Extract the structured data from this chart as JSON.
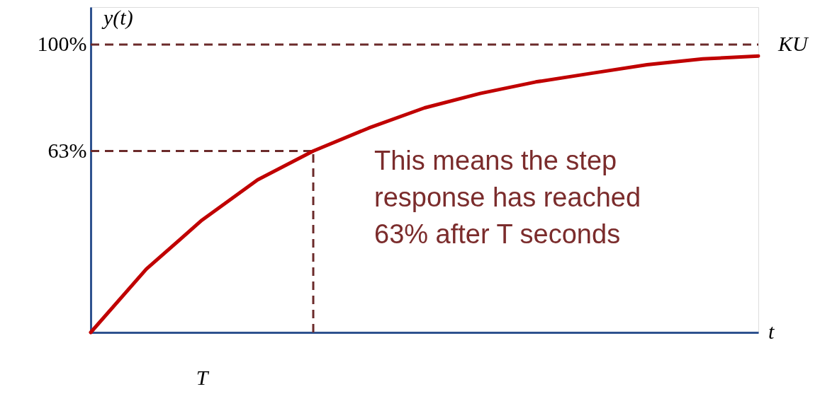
{
  "chart_data": {
    "type": "line",
    "xlabel": "t",
    "ylabel": "y(t)",
    "categories": [
      null,
      null,
      null,
      null,
      null,
      null,
      null,
      null,
      null,
      null,
      null,
      null,
      null
    ],
    "series": [
      {
        "color": "#c00000",
        "values": [
          0,
          22,
          39,
          53,
          63,
          71,
          78,
          83,
          87,
          90,
          93,
          95,
          96
        ]
      }
    ],
    "ylim": [
      0,
      113
    ],
    "yticks": [
      {
        "value": 100,
        "label": "100%"
      },
      {
        "value": 63,
        "label": "63%"
      }
    ],
    "tick_labels": "y",
    "grid": false,
    "line_style": "solid",
    "marker": "none",
    "ref_lines": [
      {
        "axis": "y",
        "value": 100,
        "label": "KU",
        "color": "#6b2a2a",
        "line_style": "dashed"
      },
      {
        "axis": "y",
        "value": 63,
        "color": "#6b2a2a",
        "line_style": "dashed"
      }
    ],
    "annotations": [
      "This means the step response has reached 63% after T seconds",
      "T"
    ]
  }
}
